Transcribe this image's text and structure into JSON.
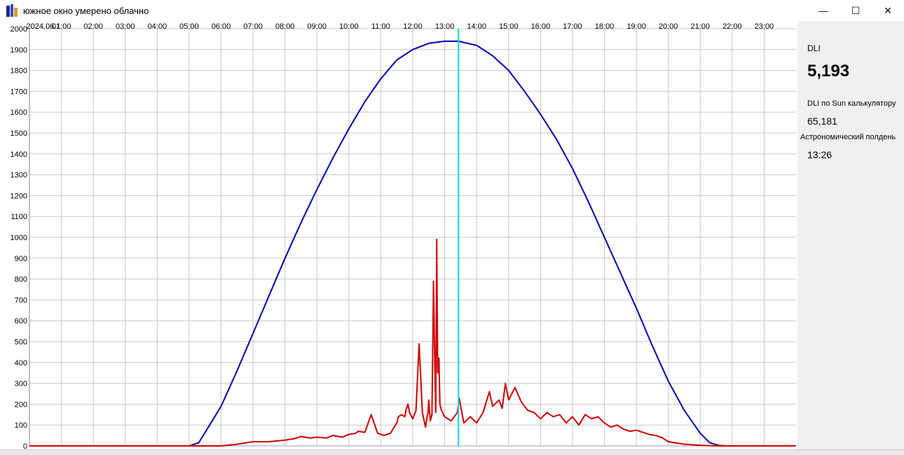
{
  "window": {
    "title": "южное окно умерено облачно",
    "controls": {
      "minimize": "—",
      "maximize": "☐",
      "close": "✕"
    }
  },
  "panel": {
    "dli_label": "DLI",
    "dli_value": "5,193",
    "sun_label": "DLI по Sun калькулятору",
    "sun_value": "65,181",
    "noon_label": "Астрономический полдень",
    "noon_value": "13:26"
  },
  "colors": {
    "theoretical": "#0000b4",
    "measured": "#d00000",
    "cursor": "#00e0e8",
    "grid": "#c8c8c8"
  },
  "chart_data": {
    "type": "line",
    "title": "",
    "xlabel": "",
    "ylabel": "",
    "xlim": [
      0,
      24
    ],
    "ylim": [
      0,
      2000
    ],
    "y_ticks": [
      0,
      100,
      200,
      300,
      400,
      500,
      600,
      700,
      800,
      900,
      1000,
      1100,
      1200,
      1300,
      1400,
      1500,
      1600,
      1700,
      1800,
      1900,
      2000
    ],
    "x_tick_labels": [
      "2024.06.1",
      "01:00",
      "02:00",
      "03:00",
      "04:00",
      "05:00",
      "06:00",
      "07:00",
      "08:00",
      "09:00",
      "10:00",
      "11:00",
      "12:00",
      "13:00",
      "14:00",
      "15:00",
      "16:00",
      "17:00",
      "18:00",
      "19:00",
      "20:00",
      "21:00",
      "22:00",
      "23:00"
    ],
    "grid": true,
    "cursor_x": 13.43,
    "series": [
      {
        "color": "#0000b4",
        "x": [
          0,
          5.0,
          5.3,
          5.6,
          6.0,
          6.5,
          7.0,
          7.5,
          8.0,
          8.5,
          9.0,
          9.5,
          10.0,
          10.5,
          11.0,
          11.5,
          12.0,
          12.5,
          13.0,
          13.43,
          14.0,
          14.5,
          15.0,
          15.5,
          16.0,
          16.5,
          17.0,
          17.5,
          18.0,
          18.5,
          19.0,
          19.5,
          20.0,
          20.5,
          21.0,
          21.3,
          21.6,
          21.85,
          24
        ],
        "y": [
          0,
          0,
          15,
          90,
          190,
          360,
          540,
          720,
          900,
          1070,
          1230,
          1380,
          1520,
          1650,
          1760,
          1850,
          1900,
          1930,
          1940,
          1940,
          1920,
          1870,
          1800,
          1700,
          1590,
          1470,
          1330,
          1170,
          1000,
          830,
          660,
          480,
          310,
          170,
          60,
          15,
          2,
          0,
          0
        ]
      },
      {
        "color": "#d00000",
        "x": [
          0,
          6.0,
          6.5,
          7.0,
          7.5,
          8.0,
          8.3,
          8.5,
          8.8,
          9.0,
          9.3,
          9.5,
          9.8,
          10.0,
          10.2,
          10.3,
          10.5,
          10.7,
          10.9,
          11.1,
          11.3,
          11.5,
          11.55,
          11.65,
          11.75,
          11.8,
          11.85,
          11.9,
          12.0,
          12.1,
          12.2,
          12.3,
          12.4,
          12.45,
          12.48,
          12.5,
          12.52,
          12.55,
          12.6,
          12.65,
          12.7,
          12.72,
          12.75,
          12.78,
          12.82,
          12.85,
          12.9,
          13.0,
          13.2,
          13.4,
          13.45,
          13.6,
          13.8,
          14.0,
          14.2,
          14.4,
          14.5,
          14.7,
          14.8,
          14.9,
          15.0,
          15.2,
          15.4,
          15.6,
          15.8,
          16.0,
          16.2,
          16.4,
          16.6,
          16.8,
          17.0,
          17.2,
          17.4,
          17.6,
          17.8,
          18.0,
          18.2,
          18.4,
          18.6,
          18.8,
          19.0,
          19.2,
          19.4,
          19.6,
          19.8,
          20.0,
          20.5,
          21.0,
          21.5,
          24
        ],
        "y": [
          0,
          0,
          8,
          20,
          20,
          28,
          35,
          45,
          38,
          42,
          38,
          50,
          42,
          55,
          60,
          70,
          65,
          150,
          60,
          50,
          60,
          110,
          140,
          150,
          140,
          180,
          200,
          160,
          130,
          170,
          490,
          160,
          90,
          140,
          160,
          220,
          180,
          120,
          150,
          790,
          300,
          160,
          990,
          350,
          420,
          200,
          170,
          140,
          120,
          160,
          230,
          110,
          140,
          110,
          160,
          260,
          190,
          220,
          180,
          300,
          220,
          280,
          210,
          170,
          160,
          130,
          160,
          140,
          150,
          110,
          140,
          100,
          150,
          130,
          140,
          110,
          90,
          100,
          80,
          70,
          75,
          65,
          55,
          50,
          40,
          20,
          8,
          3,
          0,
          0
        ]
      }
    ]
  }
}
